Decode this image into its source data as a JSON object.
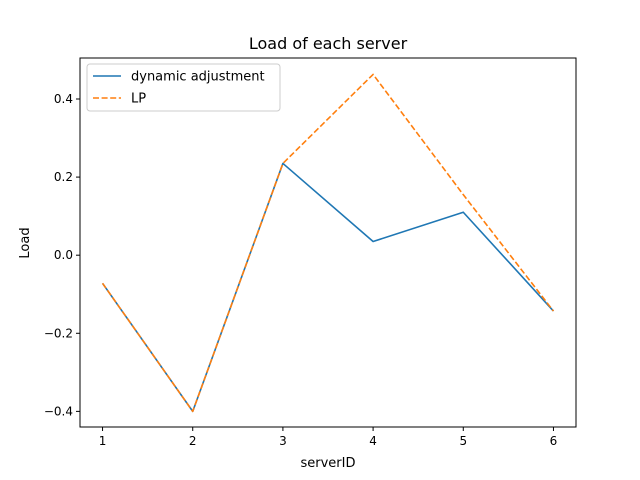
{
  "chart_data": {
    "type": "line",
    "title": "Load of each server",
    "xlabel": "serverID",
    "ylabel": "Load",
    "x": [
      1,
      2,
      3,
      4,
      5,
      6
    ],
    "xlim": [
      0.75,
      6.25
    ],
    "ylim": [
      -0.44,
      0.505
    ],
    "xticks": [
      1,
      2,
      3,
      4,
      5,
      6
    ],
    "yticks": [
      -0.4,
      -0.2,
      0.0,
      0.2,
      0.4
    ],
    "ytick_labels": [
      "−0.4",
      "−0.2",
      "0.0",
      "0.2",
      "0.4"
    ],
    "grid": false,
    "legend_position": "top-left",
    "series": [
      {
        "name": "dynamic adjustment",
        "color": "#1f77b4",
        "style": "solid",
        "values": [
          -0.072,
          -0.4,
          0.235,
          0.035,
          0.11,
          -0.143
        ]
      },
      {
        "name": "LP",
        "color": "#ff7f0e",
        "style": "dashed",
        "values": [
          -0.072,
          -0.4,
          0.235,
          0.463,
          0.155,
          -0.143
        ]
      }
    ]
  }
}
